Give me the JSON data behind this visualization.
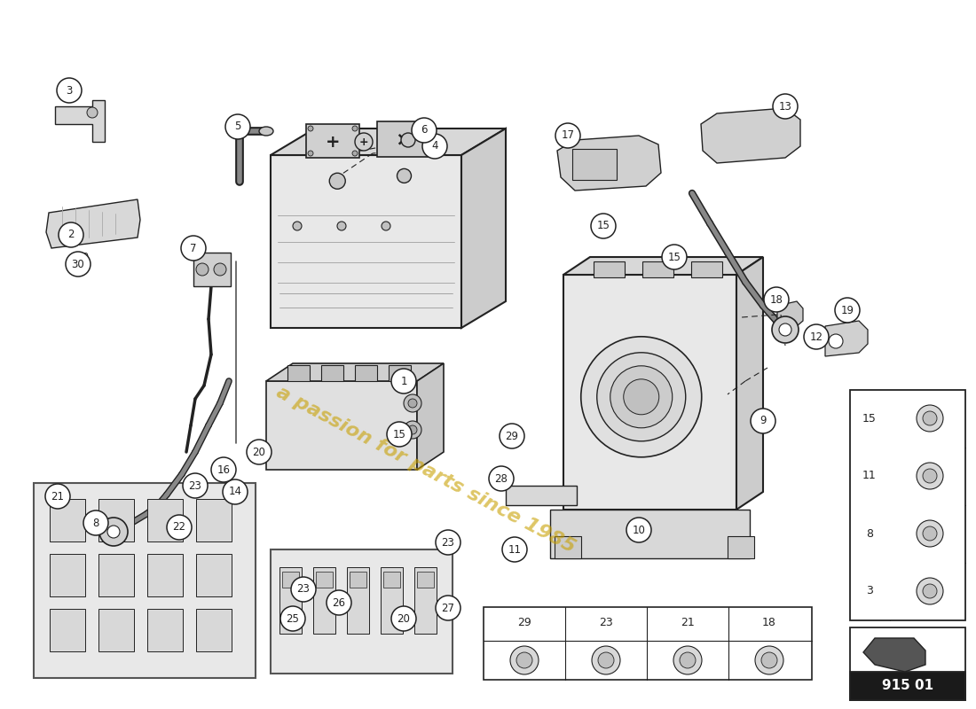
{
  "background_color": "#ffffff",
  "line_color": "#222222",
  "watermark_text": "a passion for parts since 1985",
  "watermark_color": "#c8a000",
  "part_number": "915 01",
  "fig_width": 11.0,
  "fig_height": 8.0,
  "dpi": 100
}
